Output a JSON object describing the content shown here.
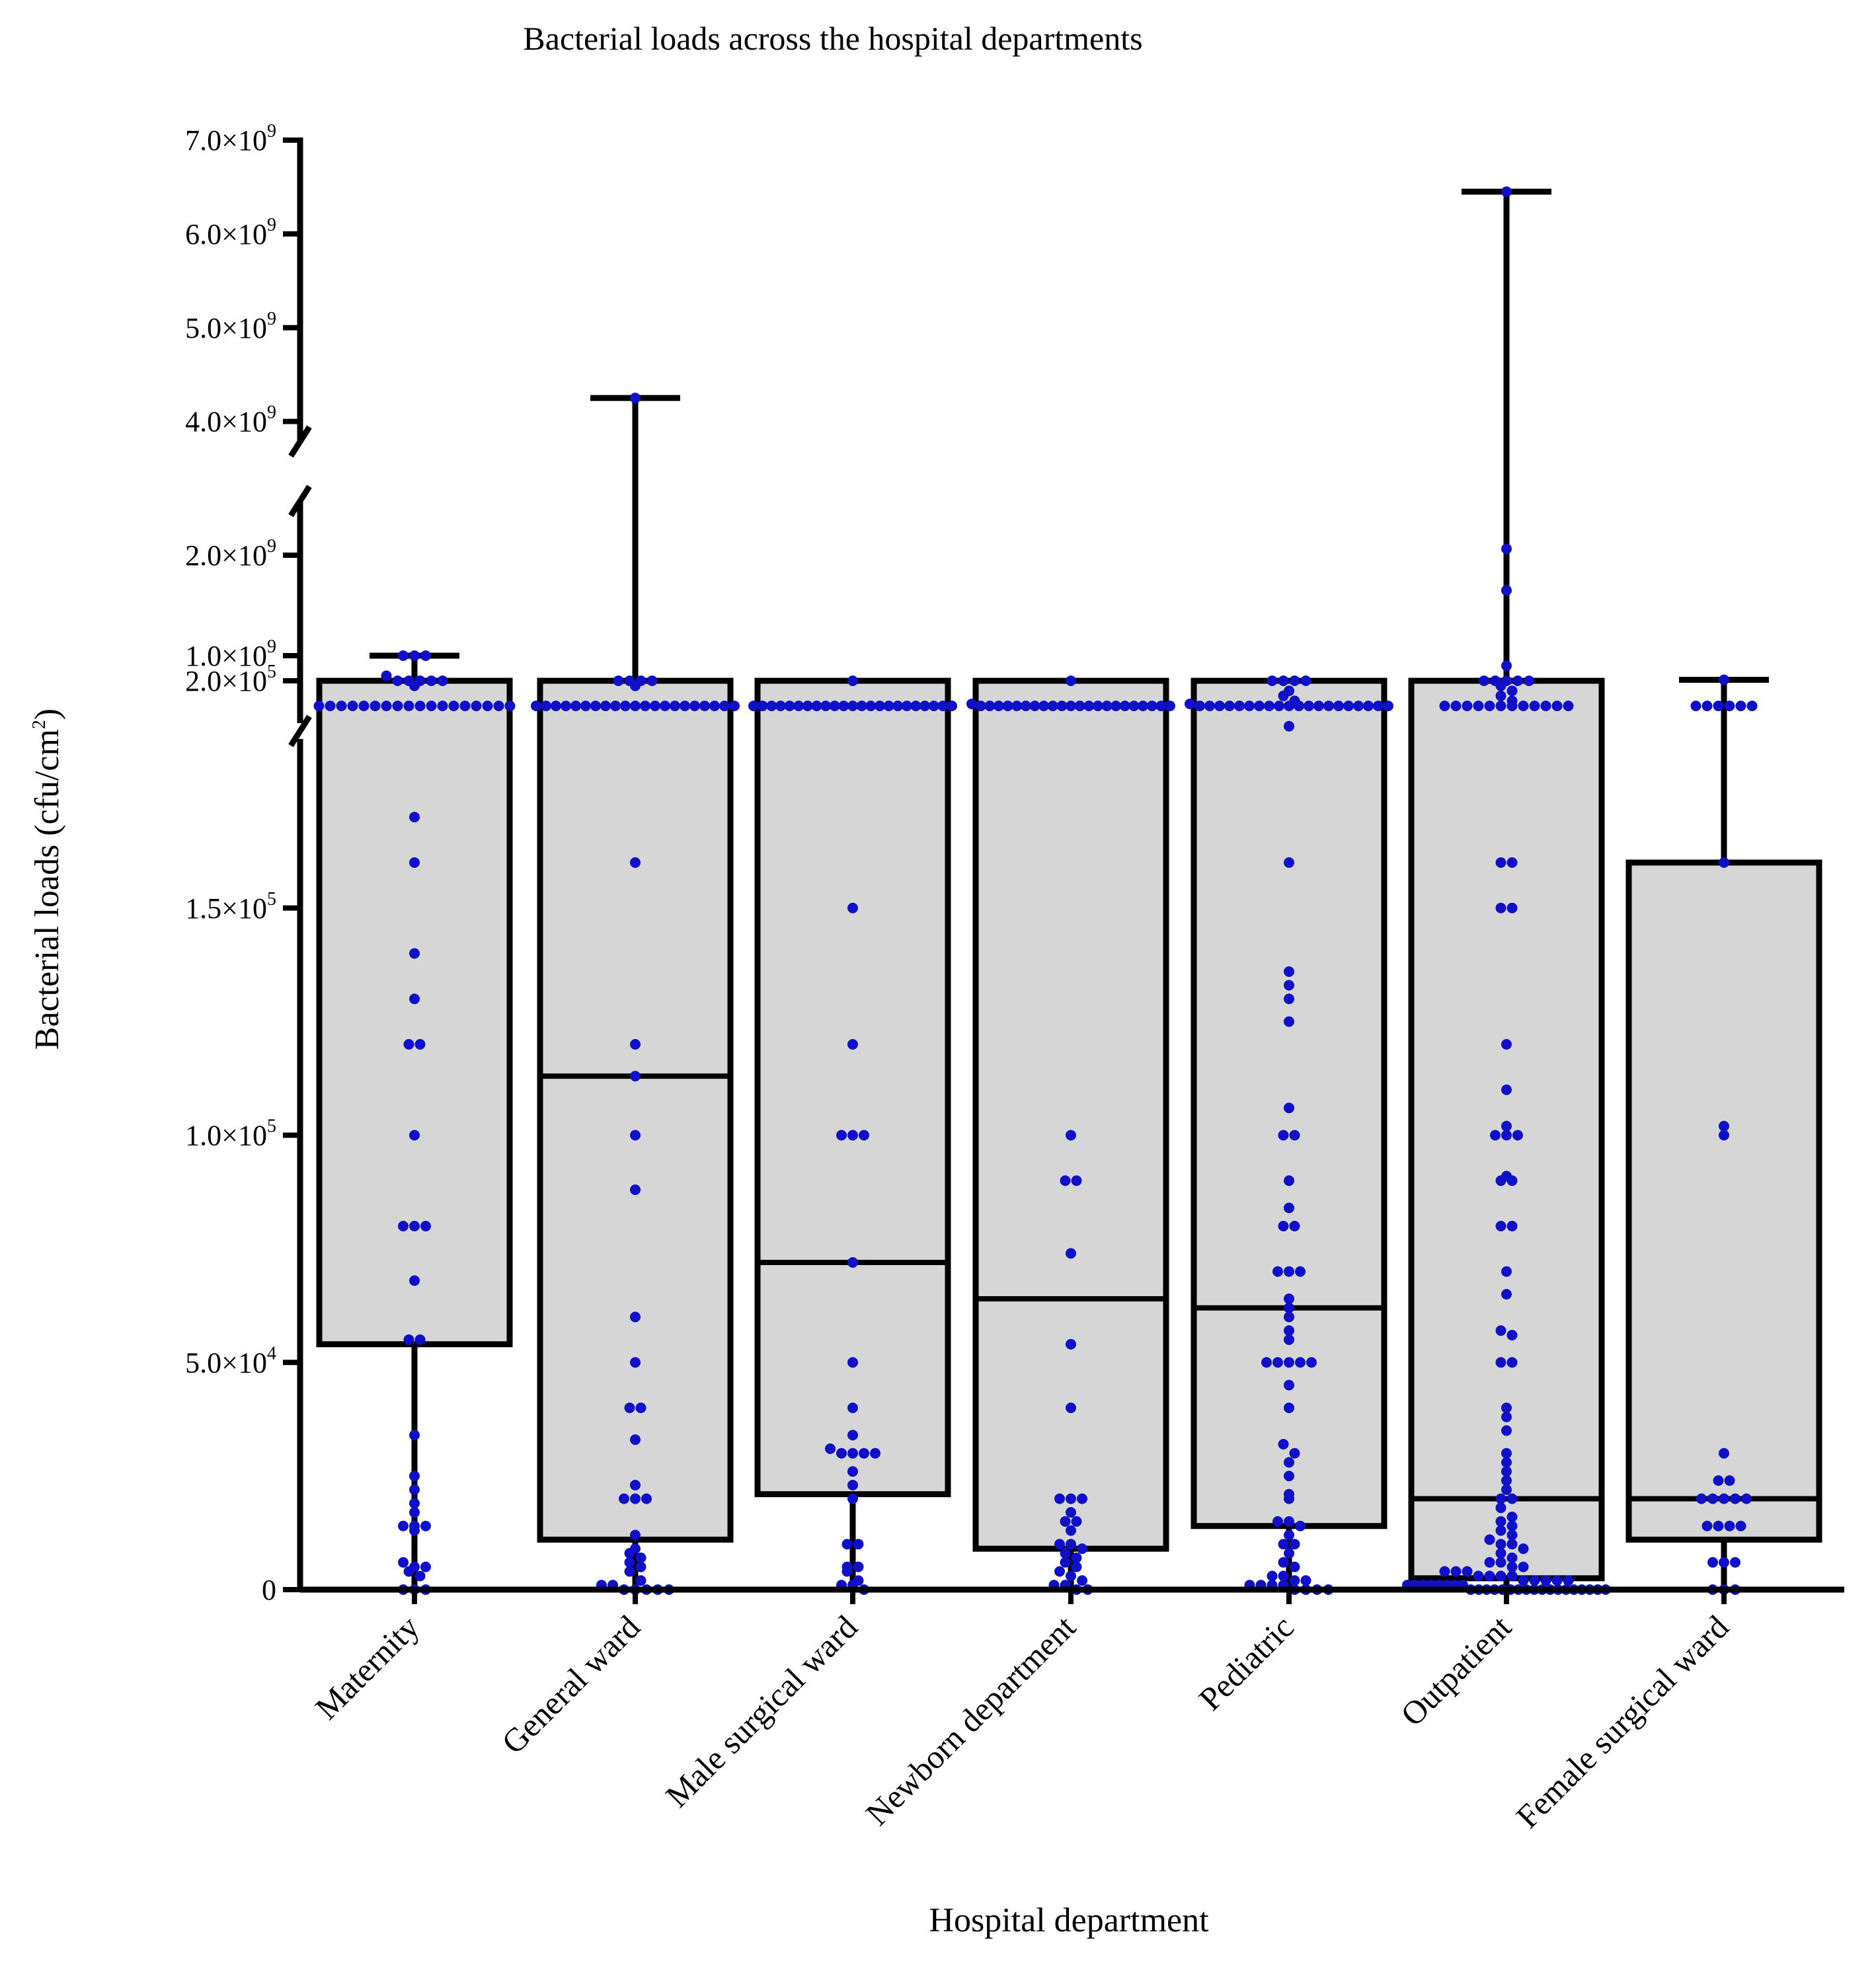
{
  "chart_data": {
    "type": "box",
    "title": "Bacterial loads across the hospital departments",
    "xlabel": "Hospital department",
    "ylabel": {
      "base": "Bacterial loads (cfu/cm",
      "sup": "2",
      "close": ")"
    },
    "y_axis_broken": true,
    "y_segments": [
      {
        "range": [
          0,
          200000
        ],
        "ticks": [
          0,
          50000,
          100000,
          150000,
          200000
        ]
      },
      {
        "range": [
          500000000,
          2000000000
        ],
        "ticks": [
          1000000000,
          2000000000
        ]
      },
      {
        "range": [
          3800000000,
          7000000000
        ],
        "ticks": [
          4000000000,
          5000000000,
          6000000000,
          7000000000
        ]
      }
    ],
    "y_tick_labels": [
      {
        "value": 0,
        "mantissa": "0",
        "exp": ""
      },
      {
        "value": 50000,
        "mantissa": "5.0×10",
        "exp": "4"
      },
      {
        "value": 100000,
        "mantissa": "1.0×10",
        "exp": "5"
      },
      {
        "value": 150000,
        "mantissa": "1.5×10",
        "exp": "5"
      },
      {
        "value": 200000,
        "mantissa": "2.0×10",
        "exp": "5"
      },
      {
        "value": 1000000000,
        "mantissa": "1.0×10",
        "exp": "9"
      },
      {
        "value": 2000000000,
        "mantissa": "2.0×10",
        "exp": "9"
      },
      {
        "value": 4000000000,
        "mantissa": "4.0×10",
        "exp": "9"
      },
      {
        "value": 5000000000,
        "mantissa": "5.0×10",
        "exp": "9"
      },
      {
        "value": 6000000000,
        "mantissa": "6.0×10",
        "exp": "9"
      },
      {
        "value": 7000000000,
        "mantissa": "7.0×10",
        "exp": "9"
      }
    ],
    "categories": [
      "Maternity",
      "General ward",
      "Male surgical ward",
      "Newborn department",
      "Pediatric",
      "Outpatient",
      "Female surgical ward"
    ],
    "boxes": [
      {
        "q1": 54000,
        "median": 54000,
        "q3": 210000,
        "whisker_low": 0,
        "whisker_high": 1000000000
      },
      {
        "q1": 11000,
        "median": 113000,
        "q3": 210000,
        "whisker_low": 0,
        "whisker_high": 4250000000
      },
      {
        "q1": 21000,
        "median": 72000,
        "q3": 210000,
        "whisker_low": 0,
        "whisker_high": 210000
      },
      {
        "q1": 9000,
        "median": 64000,
        "q3": 210000,
        "whisker_low": 0,
        "whisker_high": 520000000
      },
      {
        "q1": 14000,
        "median": 62000,
        "q3": 210000,
        "whisker_low": 0,
        "whisker_high": 650000000
      },
      {
        "q1": 2500,
        "median": 20000,
        "q3": 205000,
        "whisker_low": 0,
        "whisker_high": 6450000000
      },
      {
        "q1": 11000,
        "median": 20000,
        "q3": 160000,
        "whisker_low": 0,
        "whisker_high": 760000000
      }
    ],
    "points": [
      [
        1000000000,
        1000000000,
        1000000000,
        800000000,
        700000000,
        500000000,
        500000000,
        500000000,
        500000000,
        500000000,
        500000000,
        500000000,
        500000000,
        500000000,
        500000000,
        500000000,
        500000000,
        500000000,
        500000000,
        500000000,
        500000000,
        500000000,
        500000000,
        205000,
        205000,
        205000,
        200000,
        200000,
        170000,
        160000,
        140000,
        130000,
        120000,
        120000,
        100000,
        80000,
        80000,
        80000,
        68000,
        55000,
        55000,
        34000,
        25000,
        22000,
        19000,
        17000,
        14000,
        14000,
        14000,
        13000,
        6000,
        5000,
        5000,
        4000,
        3000,
        0,
        0,
        0
      ],
      [
        4250000000,
        700000000,
        500000000,
        500000000,
        500000000,
        500000000,
        500000000,
        500000000,
        500000000,
        500000000,
        500000000,
        500000000,
        500000000,
        500000000,
        500000000,
        500000000,
        500000000,
        500000000,
        500000000,
        500000000,
        500000000,
        500000000,
        500000000,
        205000,
        205000,
        205000,
        200000,
        160000,
        120000,
        113000,
        100000,
        88000,
        60000,
        50000,
        40000,
        40000,
        33000,
        23000,
        20000,
        20000,
        20000,
        12000,
        9000,
        8000,
        7000,
        6000,
        5000,
        4000,
        2000,
        1000,
        1000,
        0,
        0,
        0,
        0,
        0
      ],
      [
        500000000,
        500000000,
        500000000,
        500000000,
        500000000,
        500000000,
        500000000,
        500000000,
        500000000,
        500000000,
        500000000,
        500000000,
        500000000,
        500000000,
        500000000,
        500000000,
        500000000,
        500000000,
        500000000,
        500000000,
        500000000,
        500000000,
        500000000,
        200000,
        150000,
        120000,
        100000,
        100000,
        100000,
        72000,
        50000,
        40000,
        34000,
        31000,
        30000,
        30000,
        30000,
        30000,
        26000,
        23000,
        20000,
        10000,
        10000,
        5000,
        5000,
        4000,
        2000,
        1000,
        1000,
        0
      ],
      [
        520000000,
        500000000,
        500000000,
        500000000,
        500000000,
        500000000,
        500000000,
        500000000,
        500000000,
        500000000,
        500000000,
        500000000,
        500000000,
        500000000,
        500000000,
        500000000,
        500000000,
        500000000,
        500000000,
        500000000,
        500000000,
        500000000,
        500000000,
        205000,
        100000,
        90000,
        90000,
        74000,
        54000,
        40000,
        20000,
        20000,
        20000,
        17000,
        15000,
        15000,
        13000,
        10000,
        10000,
        9000,
        8000,
        7000,
        6000,
        5000,
        4000,
        3000,
        2000,
        1000,
        1000,
        0,
        0
      ],
      [
        650000000,
        600000000,
        550000000,
        520000000,
        500000000,
        500000000,
        500000000,
        500000000,
        500000000,
        500000000,
        500000000,
        500000000,
        500000000,
        500000000,
        500000000,
        500000000,
        500000000,
        500000000,
        500000000,
        500000000,
        500000000,
        500000000,
        500000000,
        500000000,
        205000,
        205000,
        205000,
        200000,
        190000,
        160000,
        136000,
        133000,
        130000,
        125000,
        106000,
        100000,
        100000,
        90000,
        84000,
        80000,
        80000,
        70000,
        70000,
        70000,
        64000,
        62000,
        60000,
        57000,
        55000,
        50000,
        50000,
        50000,
        50000,
        50000,
        45000,
        40000,
        32000,
        30000,
        28000,
        25000,
        21000,
        20000,
        15000,
        15000,
        14000,
        12000,
        10000,
        10000,
        8000,
        6000,
        5000,
        3000,
        3000,
        2000,
        2000,
        1000,
        1000,
        1000,
        1000,
        0,
        0,
        0,
        0
      ],
      [
        6450000000,
        2100000000,
        1650000000,
        900000000,
        700000000,
        650000000,
        600000000,
        550000000,
        500000000,
        500000000,
        500000000,
        500000000,
        500000000,
        500000000,
        500000000,
        500000000,
        500000000,
        500000000,
        500000000,
        500000000,
        205000,
        205000,
        205000,
        200000,
        200000,
        160000,
        160000,
        150000,
        150000,
        120000,
        110000,
        102000,
        100000,
        100000,
        100000,
        91000,
        90000,
        90000,
        80000,
        80000,
        70000,
        65000,
        57000,
        56000,
        50000,
        50000,
        40000,
        38000,
        35000,
        30000,
        28000,
        26000,
        24000,
        22000,
        20000,
        20000,
        18000,
        16000,
        15000,
        14000,
        13000,
        12000,
        11000,
        10000,
        10000,
        9000,
        8000,
        7000,
        6000,
        6000,
        5000,
        5000,
        4000,
        4000,
        4000,
        3000,
        3000,
        3000,
        3000,
        2000,
        2000,
        2000,
        2000,
        2000,
        1000,
        1000,
        1000,
        1000,
        1000,
        1000,
        1000,
        1000,
        0,
        0,
        0,
        0,
        0,
        0,
        0,
        0,
        0,
        0,
        0,
        0,
        0,
        0,
        0,
        0,
        0,
        0
      ],
      [
        760000000,
        500000000,
        500000000,
        500000000,
        500000000,
        500000000,
        500000000,
        160000,
        102000,
        100000,
        30000,
        24000,
        24000,
        20000,
        20000,
        20000,
        20000,
        20000,
        14000,
        14000,
        14000,
        14000,
        6000,
        6000,
        6000,
        0,
        0,
        0
      ]
    ],
    "colors": {
      "box_fill": "#d6d6d6",
      "box_stroke": "#000000",
      "point": "#1010c8",
      "axis": "#000000"
    },
    "grid": false,
    "legend": "none"
  }
}
